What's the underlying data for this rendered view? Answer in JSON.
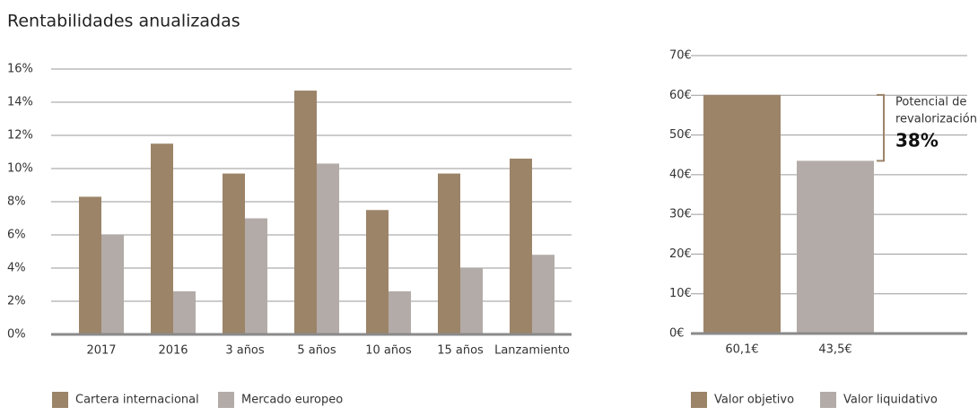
{
  "chart_data": [
    {
      "type": "bar",
      "title": "Rentabilidades anualizadas",
      "categories": [
        "2017",
        "2016",
        "3 años",
        "5 años",
        "10 años",
        "15 años",
        "Lanzamiento"
      ],
      "series": [
        {
          "name": "Cartera internacional",
          "color": "#9c8469",
          "values": [
            8.3,
            11.5,
            9.7,
            14.7,
            7.5,
            9.7,
            10.6
          ]
        },
        {
          "name": "Mercado europeo",
          "color": "#b3aba7",
          "values": [
            6.0,
            2.6,
            7.0,
            10.3,
            2.6,
            4.0,
            4.8
          ]
        }
      ],
      "ylim": [
        0,
        16
      ],
      "yticks": [
        {
          "value": 0,
          "label": "0%"
        },
        {
          "value": 2,
          "label": "2%"
        },
        {
          "value": 4,
          "label": "4%"
        },
        {
          "value": 6,
          "label": "6%"
        },
        {
          "value": 8,
          "label": "8%"
        },
        {
          "value": 10,
          "label": "10%"
        },
        {
          "value": 12,
          "label": "12%"
        },
        {
          "value": 14,
          "label": "14%"
        },
        {
          "value": 16,
          "label": "16%"
        }
      ],
      "grid": true
    },
    {
      "type": "bar",
      "series": [
        {
          "name": "Valor objetivo",
          "color": "#9c8469",
          "values": [
            60.1
          ],
          "value_labels": [
            "60,1€"
          ]
        },
        {
          "name": "Valor liquidativo",
          "color": "#b3aba7",
          "values": [
            43.5
          ],
          "value_labels": [
            "43,5€"
          ]
        }
      ],
      "ylim": [
        0,
        70
      ],
      "yticks": [
        {
          "value": 0,
          "label": "0€"
        },
        {
          "value": 10,
          "label": "10€"
        },
        {
          "value": 20,
          "label": "20€"
        },
        {
          "value": 30,
          "label": "30€"
        },
        {
          "value": 40,
          "label": "40€"
        },
        {
          "value": 50,
          "label": "50€"
        },
        {
          "value": 60,
          "label": "60€"
        },
        {
          "value": 70,
          "label": "70€"
        }
      ],
      "grid": true,
      "annotation": {
        "text": [
          "Potencial de",
          "revalorización:"
        ],
        "value": "38%"
      }
    }
  ]
}
